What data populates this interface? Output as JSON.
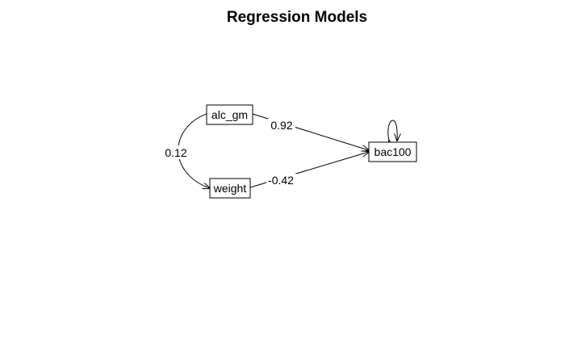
{
  "title": "Regression Models",
  "nodes": {
    "alc_gm": {
      "label": "alc_gm"
    },
    "weight": {
      "label": "weight"
    },
    "bac100": {
      "label": "bac100"
    }
  },
  "edges": {
    "alc_gm_to_bac100": {
      "from": "alc_gm",
      "to": "bac100",
      "label": "0.92"
    },
    "weight_to_bac100": {
      "from": "weight",
      "to": "bac100",
      "label": "-0.42"
    },
    "alc_gm_weight_covariance": {
      "from": "alc_gm",
      "to": "weight",
      "label": "0.12"
    },
    "bac100_residual": {
      "from": "bac100",
      "to": "bac100",
      "label": ""
    }
  },
  "colors": {
    "line": "#000000",
    "background": "#ffffff"
  }
}
